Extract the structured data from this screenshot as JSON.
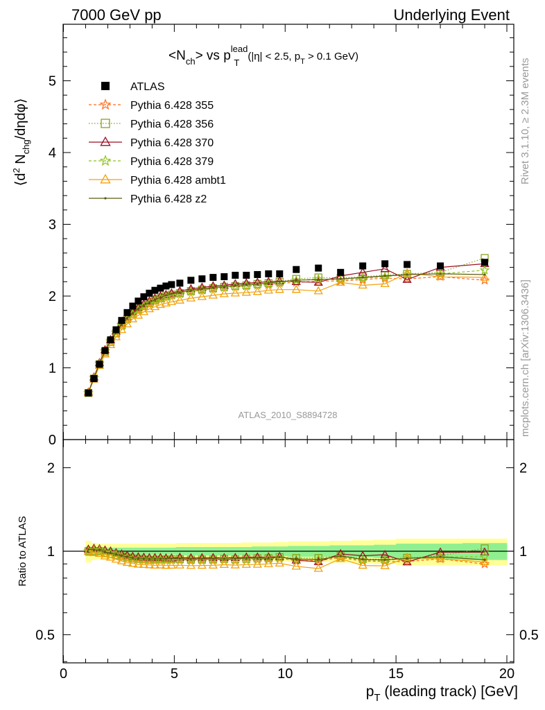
{
  "header": {
    "left": "7000 GeV pp",
    "right": "Underlying Event"
  },
  "side_labels": {
    "rivet": "Rivet 3.1.10, ≥ 2.3M events",
    "mcplots": "mcplots.cern.ch [arXiv:1306.3436]"
  },
  "watermark": "ATLAS_2010_S8894728",
  "chart_data": [
    {
      "type": "line",
      "panel": "main",
      "title": "<Nch> vs pT lead (|η| < 2.5, pT > 0.1 GeV)",
      "title_parts": {
        "main": "<N",
        "ch_sub": "ch",
        "vs": "> vs p",
        "lead_sup": "lead",
        "T_sub": "T",
        "cond_open": "(|η| < 2.5, p",
        "cond_T": "T",
        "cond_close": " > 0.1 GeV)"
      },
      "ylabel": "⟨d² Nchg/dηdφ⟩",
      "ylabel_parts": {
        "a": "⟨d",
        "b": "2",
        "c": " N",
        "d": "chg",
        "e": "/dηdφ⟩"
      },
      "xlim": [
        0,
        20
      ],
      "ylim": [
        0,
        5.8
      ],
      "yticks": [
        0,
        1,
        2,
        3,
        4,
        5
      ],
      "legend_position": "top-left",
      "x": [
        1.125,
        1.375,
        1.625,
        1.875,
        2.125,
        2.375,
        2.625,
        2.875,
        3.125,
        3.375,
        3.625,
        3.875,
        4.125,
        4.375,
        4.625,
        4.875,
        5.25,
        5.75,
        6.25,
        6.75,
        7.25,
        7.75,
        8.25,
        8.75,
        9.25,
        9.75,
        10.5,
        11.5,
        12.5,
        13.5,
        14.5,
        15.5,
        17.0,
        19.0
      ],
      "series": [
        {
          "name": "ATLAS",
          "color": "#000000",
          "marker": "square",
          "dash": "none",
          "values": [
            0.65,
            0.85,
            1.05,
            1.24,
            1.39,
            1.53,
            1.66,
            1.77,
            1.86,
            1.93,
            1.99,
            2.04,
            2.08,
            2.11,
            2.14,
            2.16,
            2.18,
            2.22,
            2.24,
            2.26,
            2.27,
            2.29,
            2.29,
            2.3,
            2.31,
            2.31,
            2.37,
            2.39,
            2.33,
            2.42,
            2.45,
            2.44,
            2.42,
            2.47
          ]
        },
        {
          "name": "Pythia 6.428 355",
          "color": "#ff6a1a",
          "marker": "star",
          "dash": "4,3",
          "values": [
            0.65,
            0.86,
            1.06,
            1.23,
            1.37,
            1.49,
            1.6,
            1.69,
            1.76,
            1.82,
            1.87,
            1.91,
            1.95,
            1.98,
            2.01,
            2.02,
            2.04,
            2.07,
            2.09,
            2.11,
            2.12,
            2.13,
            2.14,
            2.15,
            2.16,
            2.18,
            2.19,
            2.21,
            2.21,
            2.23,
            2.25,
            2.24,
            2.27,
            2.22
          ]
        },
        {
          "name": "Pythia 6.428 356",
          "color": "#8aa01c",
          "marker": "square-open",
          "dash": "1.5,2.5",
          "values": [
            0.65,
            0.85,
            1.05,
            1.22,
            1.36,
            1.48,
            1.59,
            1.68,
            1.75,
            1.81,
            1.86,
            1.9,
            1.94,
            1.97,
            2.0,
            2.02,
            2.04,
            2.07,
            2.09,
            2.11,
            2.13,
            2.14,
            2.15,
            2.17,
            2.18,
            2.2,
            2.24,
            2.26,
            2.25,
            2.27,
            2.29,
            2.31,
            2.33,
            2.53
          ]
        },
        {
          "name": "Pythia 6.428 370",
          "color": "#9b0e22",
          "marker": "triangle-open",
          "dash": "none",
          "values": [
            0.66,
            0.87,
            1.07,
            1.25,
            1.39,
            1.51,
            1.62,
            1.71,
            1.78,
            1.84,
            1.89,
            1.93,
            1.97,
            2.0,
            2.02,
            2.04,
            2.07,
            2.1,
            2.12,
            2.14,
            2.15,
            2.17,
            2.18,
            2.19,
            2.2,
            2.21,
            2.2,
            2.19,
            2.28,
            2.33,
            2.38,
            2.23,
            2.4,
            2.45
          ]
        },
        {
          "name": "Pythia 6.428 379",
          "color": "#8ec21e",
          "marker": "star",
          "dash": "4,3",
          "values": [
            0.65,
            0.86,
            1.06,
            1.23,
            1.37,
            1.49,
            1.59,
            1.68,
            1.75,
            1.81,
            1.86,
            1.9,
            1.94,
            1.97,
            1.99,
            2.01,
            2.03,
            2.06,
            2.08,
            2.1,
            2.12,
            2.13,
            2.14,
            2.15,
            2.17,
            2.18,
            2.22,
            2.24,
            2.22,
            2.25,
            2.27,
            2.3,
            2.31,
            2.36
          ]
        },
        {
          "name": "Pythia 6.428 ambt1",
          "color": "#f2a20c",
          "marker": "triangle-open",
          "dash": "none",
          "values": [
            0.65,
            0.84,
            1.03,
            1.19,
            1.32,
            1.43,
            1.53,
            1.61,
            1.68,
            1.73,
            1.78,
            1.82,
            1.85,
            1.88,
            1.9,
            1.92,
            1.94,
            1.97,
            1.99,
            2.01,
            2.03,
            2.04,
            2.05,
            2.06,
            2.08,
            2.09,
            2.09,
            2.07,
            2.19,
            2.15,
            2.17,
            2.32,
            2.27,
            2.26
          ]
        },
        {
          "name": "Pythia 6.428 z2",
          "color": "#5c5a10",
          "marker": "dot",
          "dash": "none",
          "values": [
            0.66,
            0.86,
            1.06,
            1.23,
            1.37,
            1.49,
            1.6,
            1.69,
            1.76,
            1.82,
            1.87,
            1.91,
            1.95,
            1.98,
            2.01,
            2.03,
            2.05,
            2.08,
            2.1,
            2.12,
            2.13,
            2.15,
            2.16,
            2.17,
            2.18,
            2.2,
            2.22,
            2.23,
            2.24,
            2.26,
            2.28,
            2.3,
            2.31,
            2.3
          ]
        }
      ]
    },
    {
      "type": "line",
      "panel": "ratio",
      "ylabel": "Ratio to ATLAS",
      "xlabel": "pT (leading track) [GeV]",
      "xlabel_parts": {
        "p": "p",
        "sub": "T",
        "rest": " (leading track) [GeV]"
      },
      "xlim": [
        0,
        20
      ],
      "ylim": [
        0.35,
        2.3
      ],
      "xticks": [
        0,
        5,
        10,
        15,
        20
      ],
      "yticks": [
        0.5,
        1,
        2
      ],
      "ytick_labels": [
        "0.5",
        "1",
        "2"
      ],
      "reference": 1,
      "bands": {
        "inner_color": "#90f090",
        "outer_color": "#ffff99",
        "inner_halfwidth": [
          0.04,
          0.03,
          0.03,
          0.03,
          0.03,
          0.03,
          0.03,
          0.03,
          0.03,
          0.03,
          0.03,
          0.03,
          0.03,
          0.03,
          0.03,
          0.03,
          0.035,
          0.035,
          0.035,
          0.035,
          0.035,
          0.035,
          0.035,
          0.04,
          0.04,
          0.04,
          0.045,
          0.045,
          0.05,
          0.05,
          0.055,
          0.065,
          0.065,
          0.07
        ],
        "outer_halfwidth": [
          0.09,
          0.07,
          0.065,
          0.065,
          0.065,
          0.065,
          0.065,
          0.065,
          0.065,
          0.065,
          0.065,
          0.065,
          0.065,
          0.065,
          0.065,
          0.065,
          0.07,
          0.07,
          0.07,
          0.07,
          0.07,
          0.07,
          0.075,
          0.075,
          0.075,
          0.08,
          0.085,
          0.085,
          0.09,
          0.095,
          0.1,
          0.11,
          0.11,
          0.11
        ]
      }
    }
  ]
}
